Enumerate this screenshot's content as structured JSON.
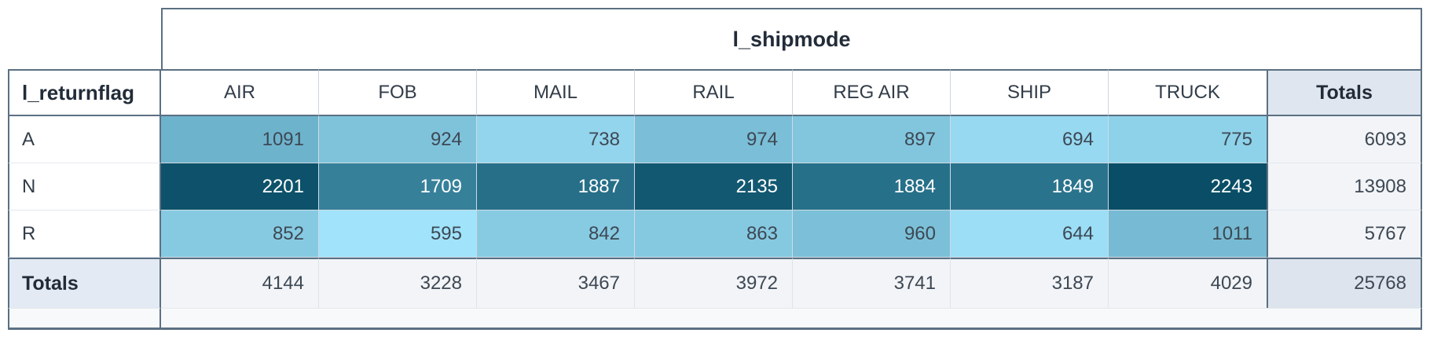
{
  "colors": {
    "border_strong": "#5b7083",
    "border_light": "#cfdae3",
    "totals_header_bg": "#dfe6ef",
    "totals_row_label_bg": "#e3eaf3",
    "totals_cell_bg": "#f2f4f7",
    "grand_total_bg": "#dde4ee",
    "footer_bg": "#f8f9fa",
    "header_text": "#222c39",
    "cell_text_dark": "#3d4854",
    "cell_text_light": "#ffffff"
  },
  "pivot": {
    "column_field": "l_shipmode",
    "row_field": "l_returnflag",
    "totals_label": "Totals",
    "columns": [
      "AIR",
      "FOB",
      "MAIL",
      "RAIL",
      "REG AIR",
      "SHIP",
      "TRUCK"
    ],
    "rows": [
      {
        "label": "A",
        "values": [
          1091,
          924,
          738,
          974,
          897,
          694,
          775
        ],
        "total": 6093,
        "text_color": "#3d4854",
        "cell_colors": [
          "#6eb3cc",
          "#7fc3db",
          "#92d5ed",
          "#7abed7",
          "#82c6de",
          "#96d9f1",
          "#8ed2e9"
        ]
      },
      {
        "label": "N",
        "values": [
          2201,
          1709,
          1887,
          2135,
          1884,
          1849,
          2243
        ],
        "total": 13908,
        "text_color": "#ffffff",
        "cell_colors": [
          "#0d526a",
          "#36809a",
          "#276f89",
          "#125871",
          "#277089",
          "#2a738c",
          "#094e66"
        ]
      },
      {
        "label": "R",
        "values": [
          852,
          595,
          842,
          863,
          960,
          644,
          1011
        ],
        "total": 5767,
        "text_color": "#3d4854",
        "cell_colors": [
          "#86cae2",
          "#a0e3fa",
          "#87cbe3",
          "#85c9e1",
          "#7bc0d8",
          "#9bdef5",
          "#76bbd3"
        ]
      }
    ],
    "column_totals": [
      4144,
      3228,
      3467,
      3972,
      3741,
      3187,
      4029
    ],
    "grand_total": 25768
  },
  "chart_data": {
    "type": "heatmap",
    "x_dimension": "l_shipmode",
    "y_dimension": "l_returnflag",
    "columns": [
      "AIR",
      "FOB",
      "MAIL",
      "RAIL",
      "REG AIR",
      "SHIP",
      "TRUCK"
    ],
    "rows": [
      "A",
      "N",
      "R"
    ],
    "values": [
      [
        1091,
        924,
        738,
        974,
        897,
        694,
        775
      ],
      [
        2201,
        1709,
        1887,
        2135,
        1884,
        1849,
        2243
      ],
      [
        852,
        595,
        842,
        863,
        960,
        644,
        1011
      ]
    ],
    "row_totals": [
      6093,
      13908,
      5767
    ],
    "column_totals": [
      4144,
      3228,
      3467,
      3972,
      3741,
      3187,
      4029
    ],
    "grand_total": 25768,
    "color_scale": {
      "min_value": 595,
      "max_value": 2243,
      "min_color": "#a0e3fa",
      "max_color": "#094e66"
    },
    "legend_position": "none",
    "grid": true
  }
}
